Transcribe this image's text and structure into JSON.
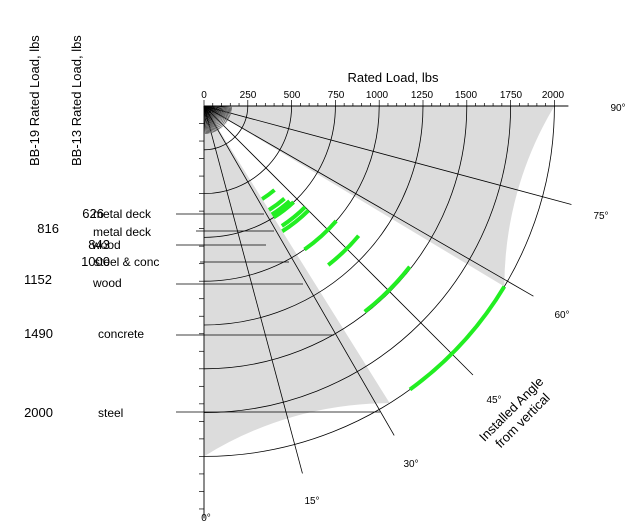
{
  "column_titles": {
    "bb19": "BB-19 Rated Load, lbs",
    "bb13": "BB-13 Rated Load, lbs"
  },
  "top_axis": {
    "title": "Rated Load, lbs",
    "ticks": [
      "0",
      "250",
      "500",
      "750",
      "1000",
      "1250",
      "1500",
      "1750",
      "2000"
    ]
  },
  "angle_title": [
    "Installed Angle",
    "from vertical"
  ],
  "angle_labels": [
    "0°",
    "15°",
    "30°",
    "45°",
    "60°",
    "75°",
    "90°"
  ],
  "rows": [
    {
      "bb13": "626",
      "bb19": "",
      "label": "metal deck"
    },
    {
      "bb13": "",
      "bb19": "816",
      "label": "metal deck"
    },
    {
      "bb13": "843",
      "bb19": "",
      "label": "wood"
    },
    {
      "bb13": "1000",
      "bb19": "",
      "label": "steel & conc"
    },
    {
      "bb13": "",
      "bb19": "1152",
      "label": "wood"
    },
    {
      "bb13": "",
      "bb19": "1490",
      "label": "concrete"
    },
    {
      "bb13": "",
      "bb19": "2000",
      "label": "steel"
    }
  ],
  "colors": {
    "shade": "#dcdcdc",
    "highlight": "#22ee22",
    "line": "#000000"
  }
}
